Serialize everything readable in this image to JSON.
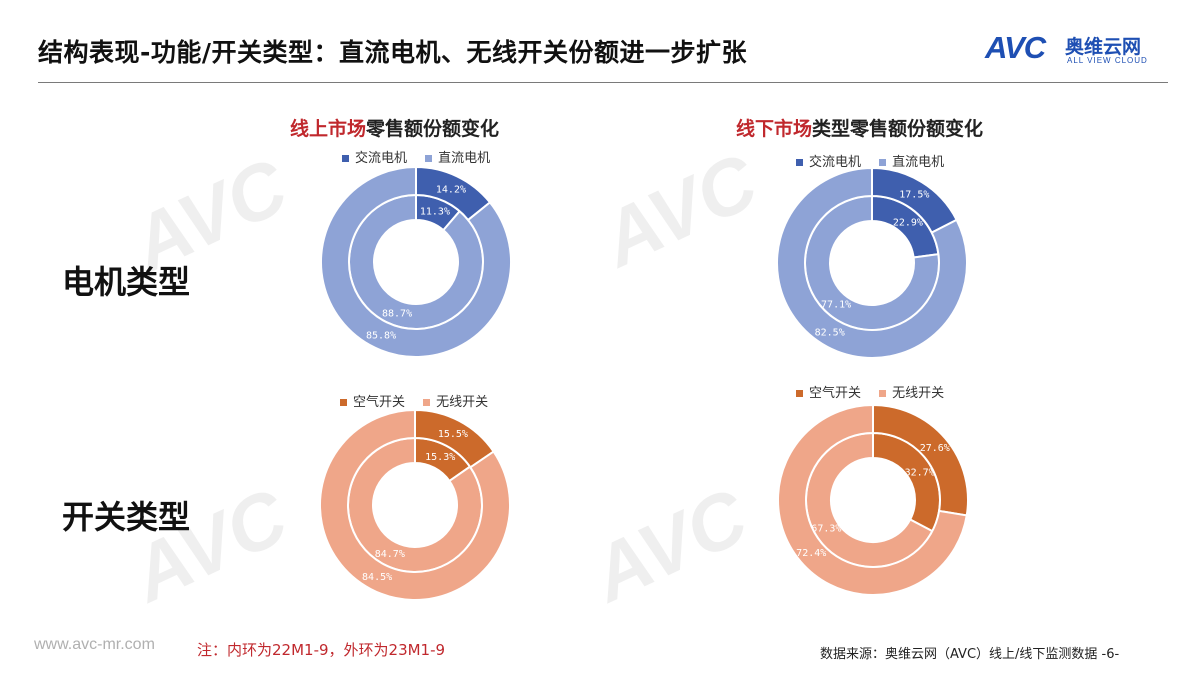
{
  "header": {
    "title": "结构表现-功能/开关类型：直流电机、无线开关份额进一步扩张",
    "logo": {
      "brand": "AVC",
      "name_cn": "奥维云网",
      "name_en": "ALL VIEW CLOUD"
    }
  },
  "rows": {
    "motor": "电机类型",
    "switch": "开关类型"
  },
  "titles": {
    "online": {
      "highlight": "线上市场",
      "rest": "零售额份额变化"
    },
    "offline": {
      "highlight": "线下市场",
      "rest": "类型零售额份额变化"
    }
  },
  "footer": {
    "url": "www.avc-mr.com",
    "note": "注：内环为22M1-9，外环为23M1-9",
    "source": "数据来源：奥维云网（AVC）线上/线下监测数据  -6-"
  },
  "colors": {
    "ac_motor": "#3f5fae",
    "dc_motor": "#8ea3d6",
    "air_switch": "#cc6a2b",
    "wireless_switch": "#efa689"
  },
  "chart_data": [
    {
      "id": "online-motor",
      "type": "pie",
      "subtype": "donut",
      "legend": [
        "交流电机",
        "直流电机"
      ],
      "legend_placement": "top",
      "series": [
        {
          "name": "22M1-9",
          "ring": "inner",
          "values": [
            11.3,
            88.7
          ],
          "labels": [
            "11.3%",
            "88.7%"
          ]
        },
        {
          "name": "23M1-9",
          "ring": "outer",
          "values": [
            14.2,
            85.8
          ],
          "labels": [
            "14.2%",
            "85.8%"
          ]
        }
      ]
    },
    {
      "id": "offline-motor",
      "type": "pie",
      "subtype": "donut",
      "legend": [
        "交流电机",
        "直流电机"
      ],
      "legend_placement": "top",
      "series": [
        {
          "name": "22M1-9",
          "ring": "inner",
          "values": [
            22.9,
            77.1
          ],
          "labels": [
            "22.9%",
            "77.1%"
          ]
        },
        {
          "name": "23M1-9",
          "ring": "outer",
          "values": [
            17.5,
            82.5
          ],
          "labels": [
            "17.5%",
            "82.5%"
          ]
        }
      ]
    },
    {
      "id": "online-switch",
      "type": "pie",
      "subtype": "donut",
      "legend": [
        "空气开关",
        "无线开关"
      ],
      "legend_placement": "top",
      "series": [
        {
          "name": "22M1-9",
          "ring": "inner",
          "values": [
            15.3,
            84.7
          ],
          "labels": [
            "15.3%",
            "84.7%"
          ]
        },
        {
          "name": "23M1-9",
          "ring": "outer",
          "values": [
            15.5,
            84.5
          ],
          "labels": [
            "15.5%",
            "84.5%"
          ]
        }
      ]
    },
    {
      "id": "offline-switch",
      "type": "pie",
      "subtype": "donut",
      "legend": [
        "空气开关",
        "无线开关"
      ],
      "legend_placement": "top",
      "series": [
        {
          "name": "22M1-9",
          "ring": "inner",
          "values": [
            32.7,
            67.3
          ],
          "labels": [
            "32.7%",
            "67.3%"
          ]
        },
        {
          "name": "23M1-9",
          "ring": "outer",
          "values": [
            27.6,
            72.4
          ],
          "labels": [
            "27.6%",
            "72.4%"
          ]
        }
      ]
    }
  ]
}
